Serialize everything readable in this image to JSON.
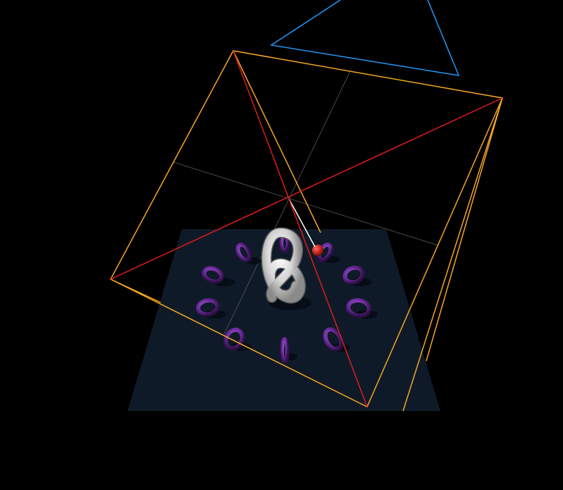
{
  "scene": {
    "background_color": "#000000",
    "ground_color": "#0f1a28",
    "grid_color": "#4a4a4a",
    "frustum_color": "#f5a623",
    "frustum_diagonal_color": "#e01b1b",
    "light_helper_color": "#2196f3",
    "pointer_line_color": "#ffffff",
    "torus_color": "#6a2a9a",
    "torus_knot_color": "#e6e6e6",
    "sphere_color": "#c0241b",
    "ring_count": 10
  }
}
